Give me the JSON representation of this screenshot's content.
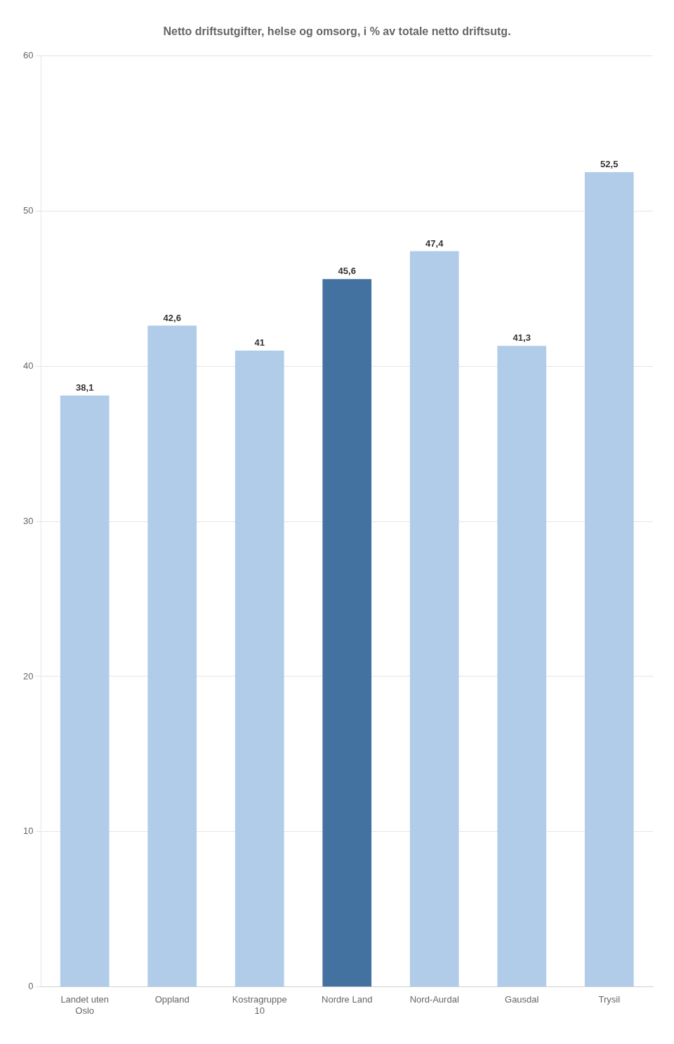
{
  "chart_data": {
    "type": "bar",
    "title": "Netto driftsutgifter, helse og omsorg, i % av totale netto driftsutg.",
    "categories": [
      "Landet uten\nOslo",
      "Oppland",
      "Kostragruppe\n10",
      "Nordre Land",
      "Nord-Aurdal",
      "Gausdal",
      "Trysil"
    ],
    "values": [
      38.1,
      42.6,
      41.0,
      45.6,
      47.4,
      41.3,
      52.5
    ],
    "value_labels": [
      "38,1",
      "42,6",
      "41",
      "45,6",
      "47,4",
      "41,3",
      "52,5"
    ],
    "colors": [
      "#b0cce8",
      "#b0cce8",
      "#b0cce8",
      "#4472a0",
      "#b0cce8",
      "#b0cce8",
      "#b0cce8"
    ],
    "ylim": [
      0,
      60
    ],
    "yticks": [
      0,
      10,
      20,
      30,
      40,
      50,
      60
    ],
    "grid": true,
    "data_labels": true
  }
}
